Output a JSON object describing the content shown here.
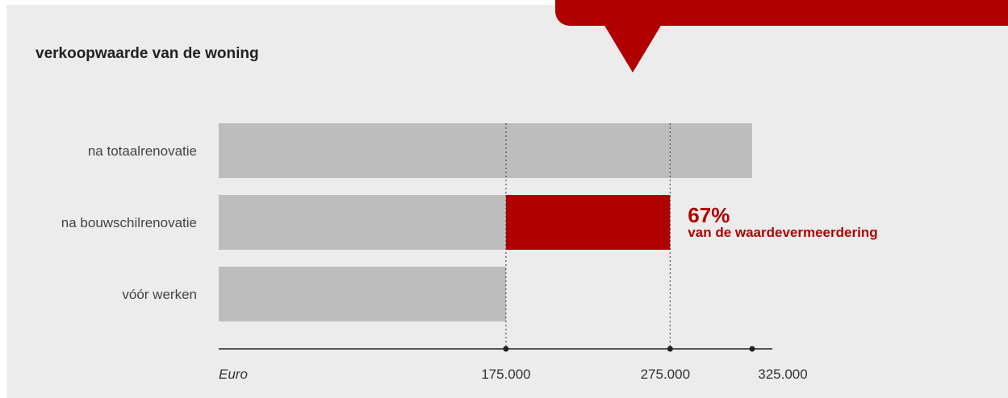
{
  "chart_data": {
    "type": "bar",
    "orientation": "horizontal",
    "title": "verkoopwaarde van de woning",
    "categories": [
      "na totaalrenovatie",
      "na bouwschilrenovatie",
      "vóór werken"
    ],
    "values": [
      325000,
      275000,
      175000
    ],
    "highlight": {
      "category": "na bouwschilrenovatie",
      "from": 175000,
      "to": 275000,
      "color": "#b00000"
    },
    "ticks": [
      175000,
      275000,
      325000
    ],
    "tick_labels": [
      "175.000",
      "275.000",
      "325.000"
    ],
    "xlabel": "Euro",
    "reference_lines": [
      175000,
      275000
    ],
    "annotation": {
      "value": "67%",
      "text": "van de waardevermeerdering"
    },
    "bar_color": "#bdbdbd",
    "accent_color": "#b00000"
  }
}
